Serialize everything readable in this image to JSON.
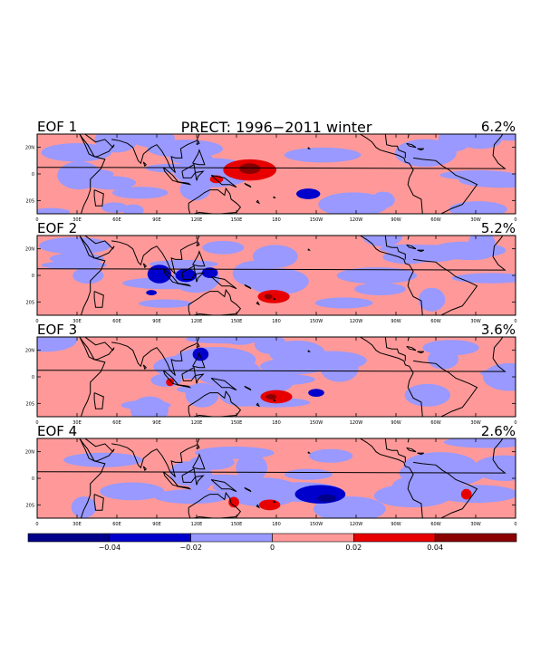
{
  "chart_data": {
    "type": "heatmap",
    "title": "PRECT: 1996−2011 winter",
    "panels": [
      {
        "label": "EOF 1",
        "variance": "6.2%"
      },
      {
        "label": "EOF 2",
        "variance": "5.2%"
      },
      {
        "label": "EOF 3",
        "variance": "3.6%"
      },
      {
        "label": "EOF 4",
        "variance": "2.6%"
      }
    ],
    "lon_ticks": [
      "0",
      "30E",
      "60E",
      "90E",
      "120E",
      "150E",
      "180",
      "150W",
      "120W",
      "90W",
      "60W",
      "30W",
      "0"
    ],
    "lat_ticks": [
      "20N",
      "0",
      "20S"
    ],
    "xlim": [
      0,
      360
    ],
    "ylim": [
      -30,
      30
    ],
    "colorbar": {
      "levels": [
        -0.06,
        -0.04,
        -0.02,
        0,
        0.02,
        0.04,
        0.06
      ],
      "colors": [
        "#00008b",
        "#0000cd",
        "#9999ff",
        "#ff9999",
        "#e80000",
        "#8b0000"
      ],
      "tick_labels": [
        "−0.04",
        "−0.02",
        "0",
        "0.02",
        "0.04"
      ]
    },
    "features": [
      [
        {
          "lon": 160,
          "lat": 3,
          "rx": 20,
          "ry": 8,
          "value": 0.03
        },
        {
          "lon": 160,
          "lat": 4,
          "rx": 8,
          "ry": 4,
          "value": 0.05
        },
        {
          "lon": 135,
          "lat": -4,
          "rx": 5,
          "ry": 3,
          "value": 0.025
        },
        {
          "lon": 204,
          "lat": -15,
          "rx": 9,
          "ry": 4,
          "value": -0.025
        }
      ],
      [
        {
          "lon": 92,
          "lat": 1,
          "rx": 9,
          "ry": 7,
          "value": -0.03
        },
        {
          "lon": 112,
          "lat": 0,
          "rx": 8,
          "ry": 5,
          "value": -0.025
        },
        {
          "lon": 130,
          "lat": 2,
          "rx": 6,
          "ry": 4,
          "value": -0.025
        },
        {
          "lon": 178,
          "lat": -16,
          "rx": 12,
          "ry": 5,
          "value": 0.03
        },
        {
          "lon": 174,
          "lat": -16,
          "rx": 3,
          "ry": 2,
          "value": 0.045
        },
        {
          "lon": 86,
          "lat": -13,
          "rx": 4,
          "ry": 2,
          "value": -0.025
        }
      ],
      [
        {
          "lon": 123,
          "lat": 17,
          "rx": 6,
          "ry": 5,
          "value": -0.025
        },
        {
          "lon": 180,
          "lat": -15,
          "rx": 12,
          "ry": 5,
          "value": 0.03
        },
        {
          "lon": 176,
          "lat": -15,
          "rx": 4,
          "ry": 2,
          "value": 0.045
        },
        {
          "lon": 210,
          "lat": -12,
          "rx": 6,
          "ry": 3,
          "value": -0.025
        },
        {
          "lon": 100,
          "lat": -4,
          "rx": 3,
          "ry": 3,
          "value": 0.025
        }
      ],
      [
        {
          "lon": 213,
          "lat": -12,
          "rx": 19,
          "ry": 7,
          "value": -0.03
        },
        {
          "lon": 218,
          "lat": -15,
          "rx": 7,
          "ry": 3,
          "value": -0.045
        },
        {
          "lon": 175,
          "lat": -20,
          "rx": 8,
          "ry": 4,
          "value": 0.03
        },
        {
          "lon": 148,
          "lat": -18,
          "rx": 4,
          "ry": 4,
          "value": 0.025
        },
        {
          "lon": 323,
          "lat": -12,
          "rx": 4,
          "ry": 4,
          "value": 0.025
        }
      ]
    ]
  }
}
